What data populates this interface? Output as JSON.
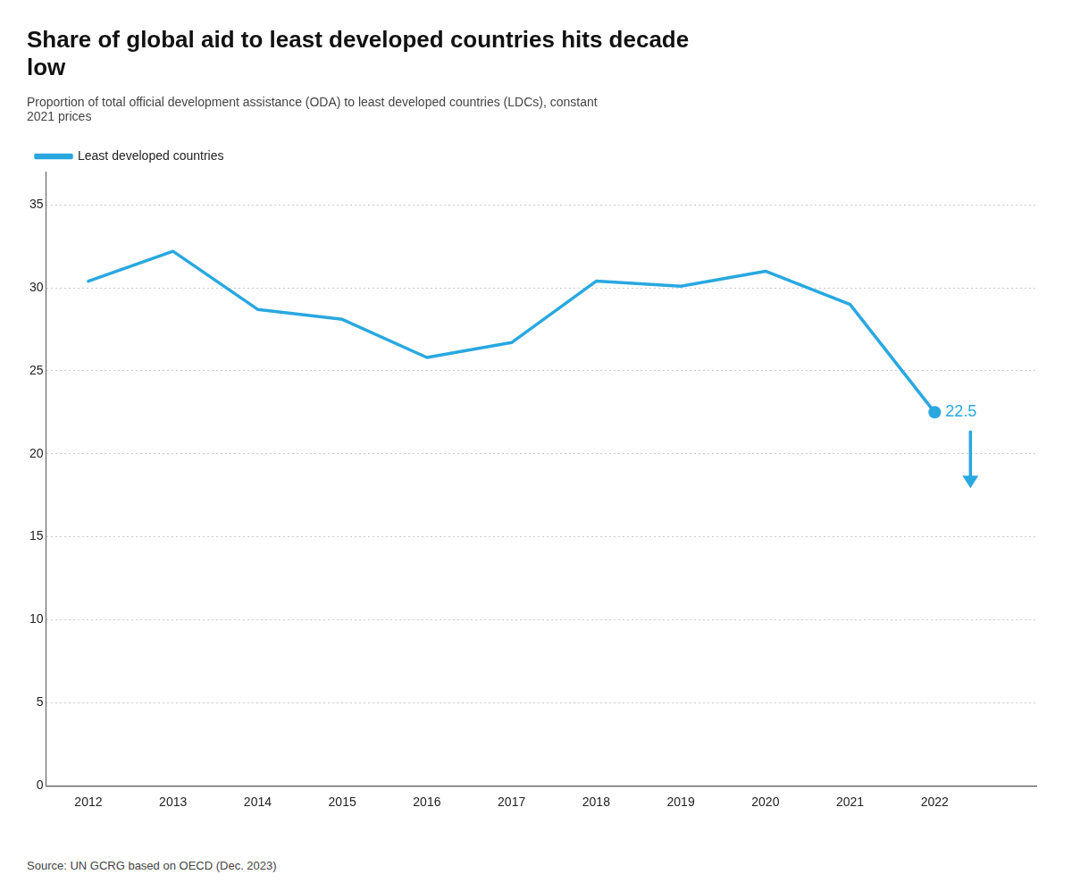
{
  "chart_data": {
    "type": "line",
    "title": "Share of global aid to least developed countries hits decade\nlow",
    "subtitle": "Proportion of total official development assistance (ODA) to least developed countries (LDCs), constant\n2021 prices",
    "source": "Source: UN GCRG based on OECD (Dec. 2023)",
    "x": [
      2012,
      2013,
      2014,
      2015,
      2016,
      2017,
      2018,
      2019,
      2020,
      2021,
      2022
    ],
    "series": [
      {
        "name": "Least developed countries",
        "color": "#29a8e0",
        "values": [
          30.4,
          32.2,
          28.7,
          28.1,
          25.8,
          26.7,
          30.4,
          30.1,
          31.0,
          29.0,
          22.5
        ]
      }
    ],
    "xlim": [
      2011.5,
      2023.2
    ],
    "xticks": [
      2012,
      2013,
      2014,
      2015,
      2016,
      2017,
      2018,
      2019,
      2020,
      2021,
      2022
    ],
    "ylim": [
      0,
      37
    ],
    "yticks": [
      0,
      5,
      10,
      15,
      20,
      25,
      30,
      35
    ],
    "grid": true,
    "legend": "top-left",
    "annotations": [
      {
        "text": "22.5",
        "x": 2022,
        "y": 22.5
      }
    ]
  }
}
